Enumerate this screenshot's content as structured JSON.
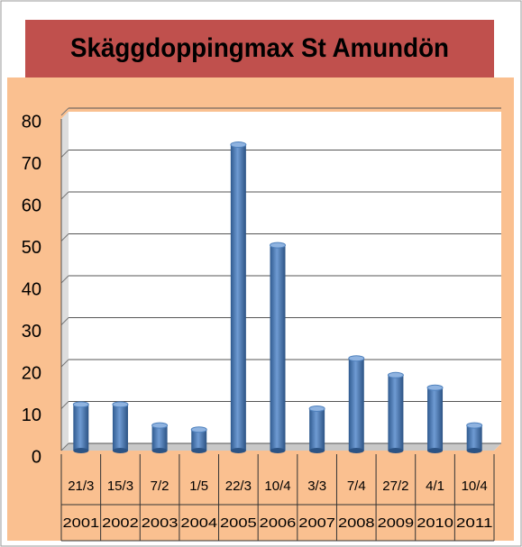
{
  "chart_data": {
    "type": "bar",
    "title": "Skäggdoppingmax St Amundön",
    "categories": [
      [
        "21/3",
        "2001"
      ],
      [
        "15/3",
        "2002"
      ],
      [
        "7/2",
        "2003"
      ],
      [
        "1/5",
        "2004"
      ],
      [
        "22/3",
        "2005"
      ],
      [
        "10/4",
        "2006"
      ],
      [
        "3/3",
        "2007"
      ],
      [
        "7/4",
        "2008"
      ],
      [
        "27/2",
        "2009"
      ],
      [
        "4/1",
        "2010"
      ],
      [
        "10/4",
        "2011"
      ]
    ],
    "values": [
      11,
      11,
      6,
      5,
      73,
      49,
      10,
      22,
      18,
      15,
      6
    ],
    "color": "#4f81bd",
    "ylim": [
      0,
      80
    ],
    "yticks": [
      0,
      10,
      20,
      30,
      40,
      50,
      60,
      70,
      80
    ],
    "grid": true
  }
}
